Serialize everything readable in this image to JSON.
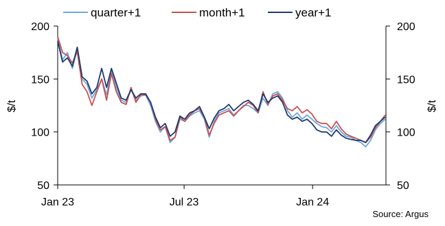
{
  "chart_data": {
    "type": "line",
    "title": "",
    "xlabel": "",
    "ylabel": "$/t",
    "ylabel_right": "$/t",
    "ylim": [
      50,
      200
    ],
    "yticks": [
      50,
      100,
      150,
      200
    ],
    "x_tick_labels": [
      {
        "label": "Jan 23",
        "x": "2023-01-01"
      },
      {
        "label": "Jul 23",
        "x": "2023-07-01"
      },
      {
        "label": "Jan 24",
        "x": "2024-01-01"
      }
    ],
    "xlim": [
      "2023-01-01",
      "2024-04-15"
    ],
    "legend_position": "top",
    "grid": false,
    "source": "Source: Argus",
    "series": [
      {
        "name": "quarter+1",
        "color": "#6fa8dc",
        "x": [
          "2023-01-01",
          "2023-01-08",
          "2023-01-15",
          "2023-01-22",
          "2023-01-29",
          "2023-02-05",
          "2023-02-12",
          "2023-02-19",
          "2023-02-26",
          "2023-03-05",
          "2023-03-12",
          "2023-03-19",
          "2023-03-26",
          "2023-04-02",
          "2023-04-09",
          "2023-04-16",
          "2023-04-23",
          "2023-04-30",
          "2023-05-07",
          "2023-05-14",
          "2023-05-21",
          "2023-05-28",
          "2023-06-04",
          "2023-06-11",
          "2023-06-18",
          "2023-06-25",
          "2023-07-02",
          "2023-07-09",
          "2023-07-16",
          "2023-07-23",
          "2023-07-30",
          "2023-08-06",
          "2023-08-13",
          "2023-08-20",
          "2023-08-27",
          "2023-09-03",
          "2023-09-10",
          "2023-09-17",
          "2023-09-24",
          "2023-10-01",
          "2023-10-08",
          "2023-10-15",
          "2023-10-22",
          "2023-10-29",
          "2023-11-05",
          "2023-11-12",
          "2023-11-19",
          "2023-11-26",
          "2023-12-03",
          "2023-12-10",
          "2023-12-17",
          "2023-12-24",
          "2023-12-31",
          "2024-01-07",
          "2024-01-14",
          "2024-01-21",
          "2024-01-28",
          "2024-02-04",
          "2024-02-11",
          "2024-02-18",
          "2024-02-25",
          "2024-03-03",
          "2024-03-10",
          "2024-03-17",
          "2024-03-24",
          "2024-03-31",
          "2024-04-07",
          "2024-04-14"
        ],
        "y": [
          188,
          168,
          175,
          160,
          178,
          150,
          145,
          132,
          140,
          150,
          135,
          158,
          142,
          130,
          128,
          140,
          130,
          134,
          135,
          125,
          110,
          100,
          105,
          90,
          95,
          112,
          110,
          115,
          118,
          120,
          112,
          95,
          110,
          118,
          120,
          122,
          116,
          120,
          125,
          125,
          122,
          118,
          132,
          125,
          136,
          138,
          132,
          120,
          114,
          118,
          112,
          116,
          112,
          108,
          105,
          104,
          100,
          106,
          100,
          96,
          95,
          92,
          90,
          86,
          92,
          102,
          108,
          112
        ]
      },
      {
        "name": "month+1",
        "color": "#c9504e",
        "x": [
          "2023-01-01",
          "2023-01-08",
          "2023-01-15",
          "2023-01-22",
          "2023-01-29",
          "2023-02-05",
          "2023-02-12",
          "2023-02-19",
          "2023-02-26",
          "2023-03-05",
          "2023-03-12",
          "2023-03-19",
          "2023-03-26",
          "2023-04-02",
          "2023-04-09",
          "2023-04-16",
          "2023-04-23",
          "2023-04-30",
          "2023-05-07",
          "2023-05-14",
          "2023-05-21",
          "2023-05-28",
          "2023-06-04",
          "2023-06-11",
          "2023-06-18",
          "2023-06-25",
          "2023-07-02",
          "2023-07-09",
          "2023-07-16",
          "2023-07-23",
          "2023-07-30",
          "2023-08-06",
          "2023-08-13",
          "2023-08-20",
          "2023-08-27",
          "2023-09-03",
          "2023-09-10",
          "2023-09-17",
          "2023-09-24",
          "2023-10-01",
          "2023-10-08",
          "2023-10-15",
          "2023-10-22",
          "2023-10-29",
          "2023-11-05",
          "2023-11-12",
          "2023-11-19",
          "2023-11-26",
          "2023-12-03",
          "2023-12-10",
          "2023-12-17",
          "2023-12-24",
          "2023-12-31",
          "2024-01-07",
          "2024-01-14",
          "2024-01-21",
          "2024-01-28",
          "2024-02-04",
          "2024-02-11",
          "2024-02-18",
          "2024-02-25",
          "2024-03-03",
          "2024-03-10",
          "2024-03-17",
          "2024-03-24",
          "2024-03-31",
          "2024-04-07",
          "2024-04-14"
        ],
        "y": [
          190,
          175,
          172,
          165,
          176,
          145,
          138,
          125,
          138,
          150,
          130,
          155,
          138,
          128,
          126,
          142,
          128,
          135,
          135,
          128,
          112,
          102,
          105,
          92,
          95,
          114,
          110,
          116,
          120,
          122,
          114,
          97,
          108,
          116,
          118,
          120,
          115,
          120,
          124,
          128,
          125,
          118,
          138,
          126,
          134,
          136,
          130,
          122,
          120,
          124,
          118,
          121,
          117,
          110,
          108,
          108,
          103,
          110,
          103,
          98,
          96,
          94,
          92,
          90,
          95,
          104,
          110,
          116
        ]
      },
      {
        "name": "year+1",
        "color": "#1f3a6e",
        "x": [
          "2023-01-01",
          "2023-01-08",
          "2023-01-15",
          "2023-01-22",
          "2023-01-29",
          "2023-02-05",
          "2023-02-12",
          "2023-02-19",
          "2023-02-26",
          "2023-03-05",
          "2023-03-12",
          "2023-03-19",
          "2023-03-26",
          "2023-04-02",
          "2023-04-09",
          "2023-04-16",
          "2023-04-23",
          "2023-04-30",
          "2023-05-07",
          "2023-05-14",
          "2023-05-21",
          "2023-05-28",
          "2023-06-04",
          "2023-06-11",
          "2023-06-18",
          "2023-06-25",
          "2023-07-02",
          "2023-07-09",
          "2023-07-16",
          "2023-07-23",
          "2023-07-30",
          "2023-08-06",
          "2023-08-13",
          "2023-08-20",
          "2023-08-27",
          "2023-09-03",
          "2023-09-10",
          "2023-09-17",
          "2023-09-24",
          "2023-10-01",
          "2023-10-08",
          "2023-10-15",
          "2023-10-22",
          "2023-10-29",
          "2023-11-05",
          "2023-11-12",
          "2023-11-19",
          "2023-11-26",
          "2023-12-03",
          "2023-12-10",
          "2023-12-17",
          "2023-12-24",
          "2023-12-31",
          "2024-01-07",
          "2024-01-14",
          "2024-01-21",
          "2024-01-28",
          "2024-02-04",
          "2024-02-11",
          "2024-02-18",
          "2024-02-25",
          "2024-03-03",
          "2024-03-10",
          "2024-03-17",
          "2024-03-24",
          "2024-03-31",
          "2024-04-07",
          "2024-04-14"
        ],
        "y": [
          186,
          166,
          170,
          162,
          180,
          152,
          148,
          136,
          142,
          160,
          142,
          160,
          146,
          132,
          130,
          140,
          132,
          136,
          136,
          128,
          114,
          104,
          108,
          96,
          100,
          115,
          112,
          118,
          120,
          124,
          114,
          103,
          113,
          120,
          122,
          126,
          120,
          124,
          128,
          130,
          126,
          120,
          136,
          128,
          132,
          134,
          128,
          116,
          112,
          114,
          110,
          112,
          108,
          102,
          100,
          100,
          96,
          102,
          97,
          94,
          93,
          92,
          92,
          90,
          97,
          106,
          110,
          114
        ]
      }
    ]
  }
}
